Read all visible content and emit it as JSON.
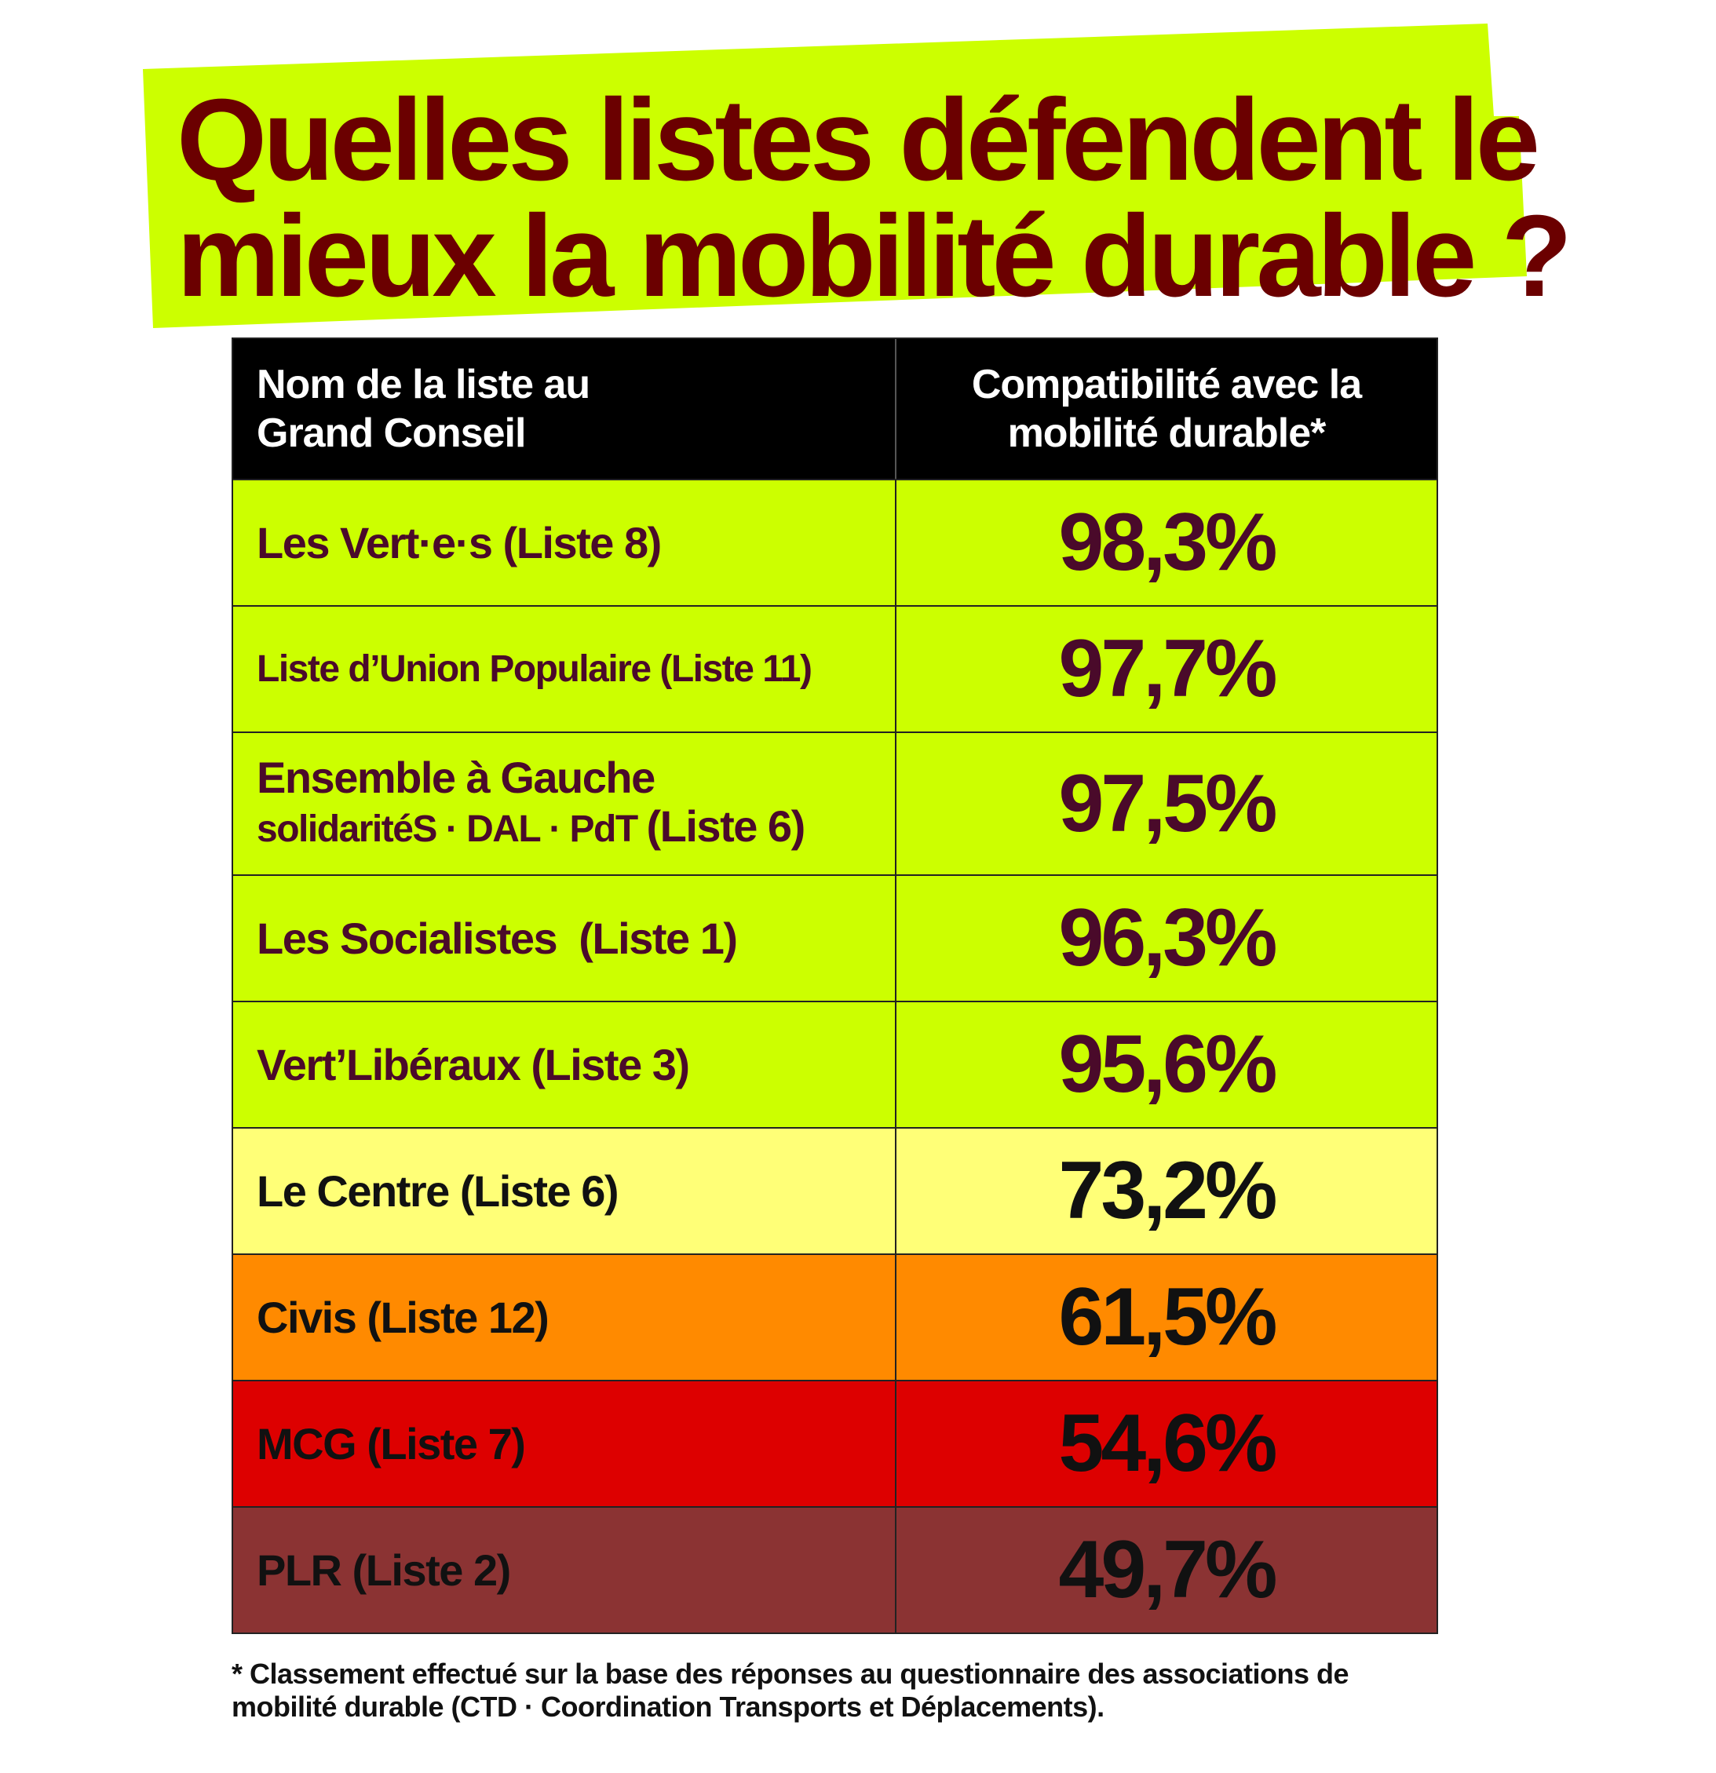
{
  "title_lines": [
    "Quelles listes défendent le",
    "mieux la mobilité durable ?"
  ],
  "colors": {
    "title_bg": "#ccff00",
    "title_text": "#6b0000",
    "header_bg": "#000000",
    "tier_green": "#ccff00",
    "tier_yellow": "#ffff77",
    "tier_orange": "#ff8a00",
    "tier_red": "#dd0000",
    "tier_brown": "#8b3333",
    "text_dark_purple": "#4a0a2a",
    "text_black": "#111111"
  },
  "chart_data": {
    "type": "table",
    "columns": [
      "Nom de la liste au Grand Conseil",
      "Compatibilité avec la mobilité durable*"
    ],
    "header_lines": {
      "col1": [
        "Nom de la liste au",
        "Grand Conseil"
      ],
      "col2": [
        "Compatibilité avec la",
        "mobilité durable*"
      ]
    },
    "rows": [
      {
        "name": "Les Vert·e·s (Liste 8)",
        "value_label": "98,3%",
        "value": 98.3,
        "tier": "green"
      },
      {
        "name": "Liste d’Union Populaire (Liste 11)",
        "value_label": "97,7%",
        "value": 97.7,
        "tier": "green"
      },
      {
        "name_line1": "Ensemble à Gauche",
        "name_line2a": "solidaritéS · DAL · PdT",
        "name_line2b": "(Liste 6)",
        "value_label": "97,5%",
        "value": 97.5,
        "tier": "green"
      },
      {
        "name": "Les Socialistes  (Liste 1)",
        "value_label": "96,3%",
        "value": 96.3,
        "tier": "green"
      },
      {
        "name": "Vert’Libéraux (Liste 3)",
        "value_label": "95,6%",
        "value": 95.6,
        "tier": "green"
      },
      {
        "name": "Le Centre (Liste 6)",
        "value_label": "73,2%",
        "value": 73.2,
        "tier": "yellow"
      },
      {
        "name": "Civis (Liste 12)",
        "value_label": "61,5%",
        "value": 61.5,
        "tier": "orange"
      },
      {
        "name": "MCG (Liste 7)",
        "value_label": "54,6%",
        "value": 54.6,
        "tier": "red"
      },
      {
        "name": "PLR (Liste 2)",
        "value_label": "49,7%",
        "value": 49.7,
        "tier": "brown"
      }
    ]
  },
  "footnote_lines": [
    "* Classement effectué sur la base des réponses au questionnaire des associations de",
    "mobilité durable (CTD · Coordination Transports et Déplacements)."
  ]
}
